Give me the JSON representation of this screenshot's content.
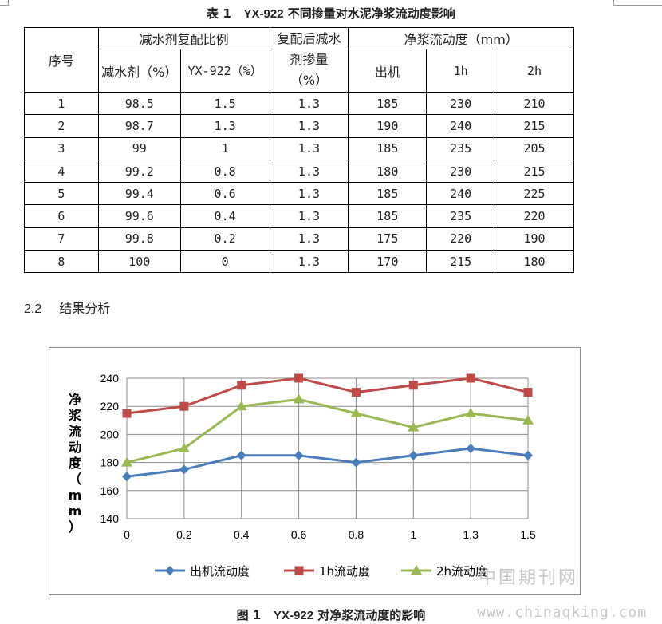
{
  "table": {
    "caption_prefix": "表 1",
    "caption_code": "YX-922",
    "caption_text": "不同掺量对水泥净浆流动度影响",
    "headers": {
      "serial": "序号",
      "ratio_group": "减水剂复配比例",
      "reducer": "减水剂（%）",
      "yx922": "YX-922（%）",
      "dosage": "复配后减水剂掺量（%）",
      "fluidity_group": "净浆流动度（mm）",
      "out": "出机",
      "h1": "1h",
      "h2": "2h"
    },
    "rows": [
      [
        "1",
        "98.5",
        "1.5",
        "1.3",
        "185",
        "230",
        "210"
      ],
      [
        "2",
        "98.7",
        "1.3",
        "1.3",
        "190",
        "240",
        "215"
      ],
      [
        "3",
        "99",
        "1",
        "1.3",
        "185",
        "235",
        "205"
      ],
      [
        "4",
        "99.2",
        "0.8",
        "1.3",
        "180",
        "230",
        "215"
      ],
      [
        "5",
        "99.4",
        "0.6",
        "1.3",
        "185",
        "240",
        "225"
      ],
      [
        "6",
        "99.6",
        "0.4",
        "1.3",
        "185",
        "235",
        "220"
      ],
      [
        "7",
        "99.8",
        "0.2",
        "1.3",
        "175",
        "220",
        "190"
      ],
      [
        "8",
        "100",
        "0",
        "1.3",
        "170",
        "215",
        "180"
      ]
    ]
  },
  "section": {
    "number": "2.2",
    "title": "结果分析"
  },
  "figure": {
    "caption_prefix": "图 1",
    "caption_code": "YX-922",
    "caption_text": "对净浆流动度的影响"
  },
  "watermark": {
    "line1": "中国期刊网",
    "line2": "www.chinaqking.com"
  },
  "chart_data": {
    "type": "line",
    "title": "",
    "xlabel": "",
    "ylabel": "净浆流动度（mm）",
    "categories": [
      "0",
      "0.2",
      "0.4",
      "0.6",
      "0.8",
      "1",
      "1.3",
      "1.5"
    ],
    "ylim": [
      140,
      240
    ],
    "yticks": [
      140,
      160,
      180,
      200,
      220,
      240
    ],
    "grid": true,
    "legend_position": "bottom",
    "series": [
      {
        "name": "出机流动度",
        "values": [
          170,
          175,
          185,
          185,
          180,
          185,
          190,
          185
        ],
        "color": "#4a7ebb",
        "marker": "diamond"
      },
      {
        "name": "1h流动度",
        "values": [
          215,
          220,
          235,
          240,
          230,
          235,
          240,
          230
        ],
        "color": "#be4b48",
        "marker": "square"
      },
      {
        "name": "2h流动度",
        "values": [
          180,
          190,
          220,
          225,
          215,
          205,
          215,
          210
        ],
        "color": "#98b954",
        "marker": "triangle"
      }
    ]
  }
}
